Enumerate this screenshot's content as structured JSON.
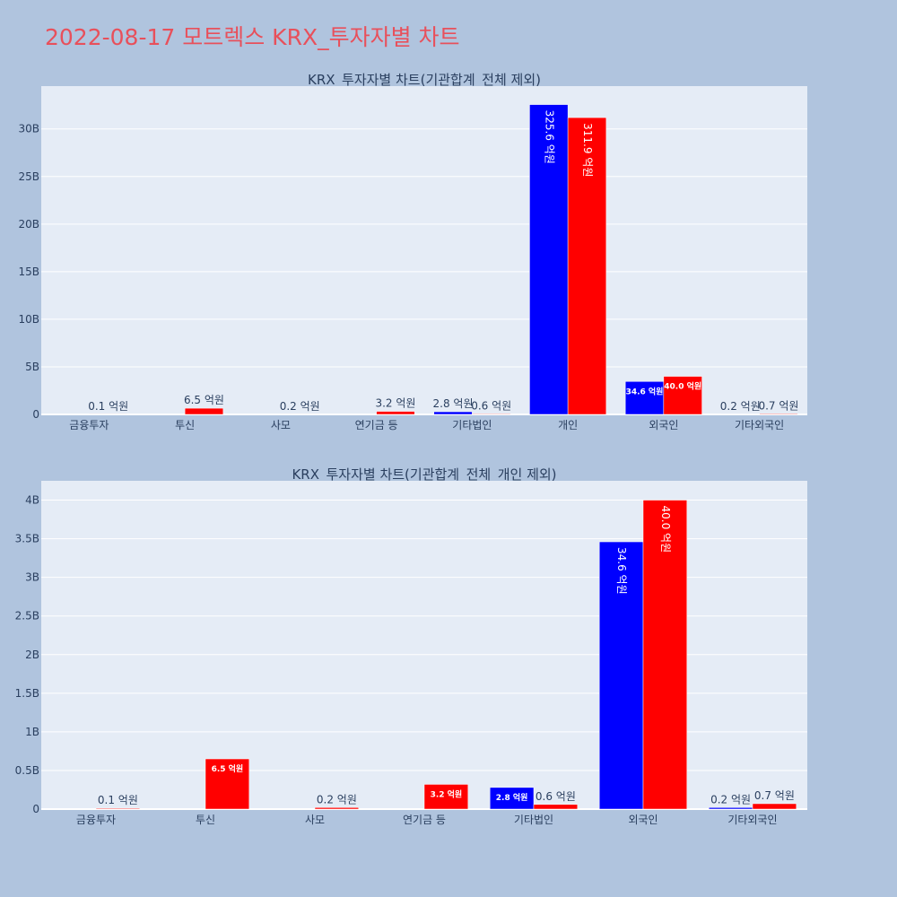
{
  "page_title": "2022-08-17 모트렉스 KRX_투자자별 차트",
  "colors": {
    "buy": "#0000ff",
    "sell": "#ff0000",
    "plot_bg": "#e5ecf6",
    "title": "#e8505b",
    "page_bg": "#b0c4de"
  },
  "chart_data": [
    {
      "type": "bar",
      "title": "KRX_투자자별 차트(기관합계_전체 제외)",
      "categories": [
        "금융투자",
        "투신",
        "사모",
        "연기금 등",
        "기타법인",
        "개인",
        "외국인",
        "기타외국인"
      ],
      "ylim": [
        0,
        34500000000
      ],
      "yticks": [
        0,
        5000000000,
        10000000000,
        15000000000,
        20000000000,
        25000000000,
        30000000000
      ],
      "ytick_labels": [
        "0",
        "5B",
        "10B",
        "15B",
        "20B",
        "25B",
        "30B"
      ],
      "series": [
        {
          "values": [
            0,
            0,
            0,
            0,
            280000000,
            32560000000,
            3460000000,
            20000000
          ],
          "labels": [
            "",
            "",
            "",
            "",
            "2.8 억원",
            "325.6 억원",
            "34.6 억원",
            "0.2 억원"
          ]
        },
        {
          "values": [
            10000000,
            650000000,
            20000000,
            320000000,
            60000000,
            31190000000,
            4000000000,
            70000000
          ],
          "labels": [
            "0.1 억원",
            "6.5 억원",
            "0.2 억원",
            "3.2 억원",
            "0.6 억원",
            "311.9 억원",
            "40.0 억원",
            "0.7 억원"
          ]
        }
      ],
      "grid": true
    },
    {
      "type": "bar",
      "title": "KRX_투자자별 차트(기관합계_전체_개인 제외)",
      "categories": [
        "금융투자",
        "투신",
        "사모",
        "연기금 등",
        "기타법인",
        "외국인",
        "기타외국인"
      ],
      "ylim": [
        0,
        4250000000
      ],
      "yticks": [
        0,
        500000000,
        1000000000,
        1500000000,
        2000000000,
        2500000000,
        3000000000,
        3500000000,
        4000000000
      ],
      "ytick_labels": [
        "0",
        "0.5B",
        "1B",
        "1.5B",
        "2B",
        "2.5B",
        "3B",
        "3.5B",
        "4B"
      ],
      "series": [
        {
          "values": [
            0,
            0,
            0,
            0,
            280000000,
            3460000000,
            20000000
          ],
          "labels": [
            "",
            "",
            "",
            "",
            "2.8 억원",
            "34.6 억원",
            "0.2 억원"
          ]
        },
        {
          "values": [
            10000000,
            650000000,
            20000000,
            320000000,
            60000000,
            4000000000,
            70000000
          ],
          "labels": [
            "0.1 억원",
            "6.5 억원",
            "0.2 억원",
            "3.2 억원",
            "0.6 억원",
            "40.0 억원",
            "0.7 억원"
          ]
        }
      ],
      "grid": true
    }
  ]
}
